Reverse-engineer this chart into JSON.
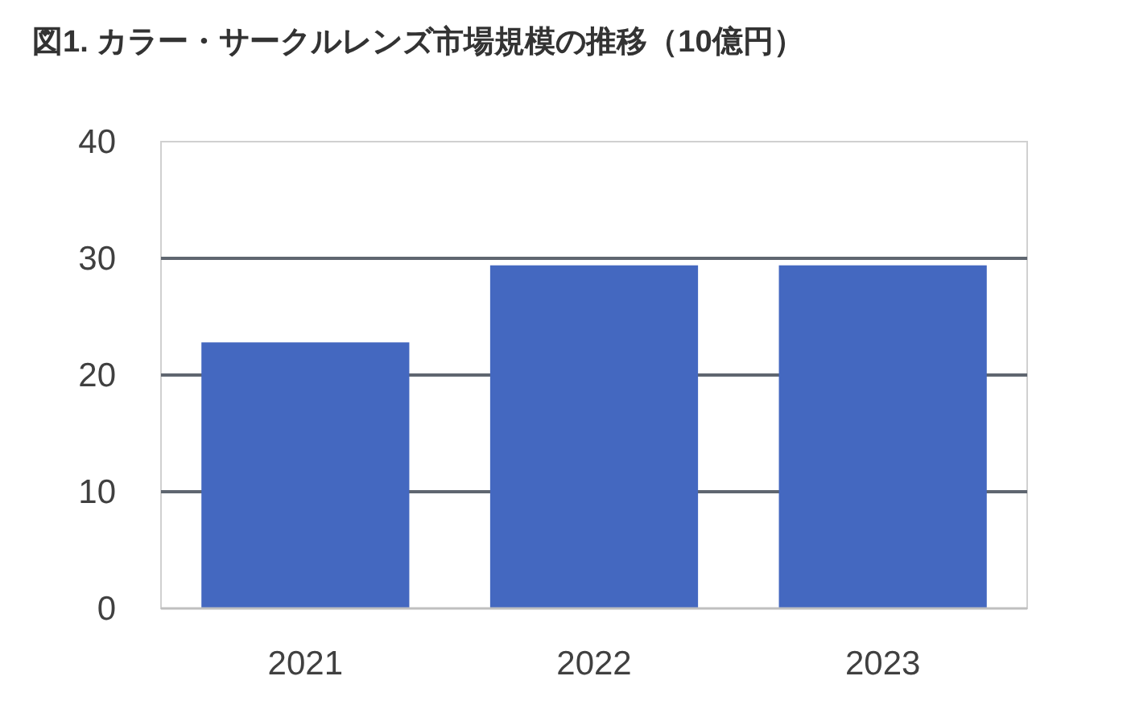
{
  "chart_data": {
    "type": "bar",
    "title": "図1. カラー・サークルレンズ市場規模の推移（10億円）",
    "categories": [
      "2021",
      "2022",
      "2023"
    ],
    "values": [
      22.8,
      29.4,
      29.4
    ],
    "color": "#4468c0",
    "ylim": [
      0,
      40
    ],
    "yticks": [
      0,
      10,
      20,
      30,
      40
    ],
    "grid": "y"
  }
}
